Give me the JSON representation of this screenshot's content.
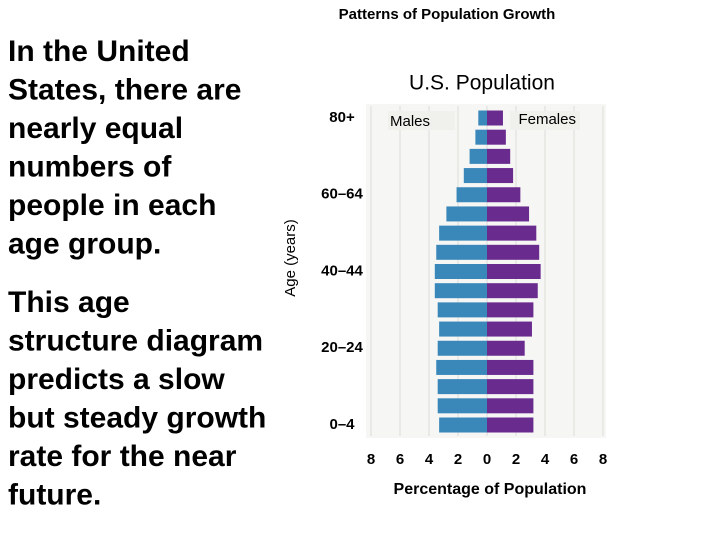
{
  "header": {
    "title": "Patterns of Population Growth"
  },
  "text": {
    "paragraphs": [
      {
        "lines": [
          "In the United",
          "States, there are",
          "nearly equal",
          "numbers of",
          "people in each",
          "age group."
        ]
      },
      {
        "lines": [
          "This age",
          "structure diagram",
          "predicts a slow",
          "but steady growth",
          "rate for the near",
          "future."
        ]
      }
    ]
  },
  "chart_data": {
    "type": "pyramid",
    "title": "U.S. Population",
    "y_label": "Age (years)",
    "x_label": "Percentage of Population",
    "categories": [
      "0–4",
      null,
      null,
      null,
      "20–24",
      null,
      null,
      null,
      "40–44",
      null,
      null,
      null,
      "60–64",
      null,
      null,
      null,
      "80+"
    ],
    "series": [
      {
        "name": "Males",
        "color": "#3a87ba",
        "values": [
          3.3,
          3.4,
          3.4,
          3.5,
          3.4,
          3.3,
          3.4,
          3.6,
          3.6,
          3.5,
          3.3,
          2.8,
          2.1,
          1.6,
          1.2,
          0.8,
          0.6
        ]
      },
      {
        "name": "Females",
        "color": "#6a2b8f",
        "values": [
          3.2,
          3.2,
          3.2,
          3.2,
          2.6,
          3.1,
          3.2,
          3.5,
          3.7,
          3.6,
          3.4,
          2.9,
          2.3,
          1.8,
          1.6,
          1.3,
          1.1
        ]
      }
    ],
    "xlim": [
      -8,
      8
    ],
    "xticks": [
      {
        "value": -8,
        "label": "8"
      },
      {
        "value": -6,
        "label": "6"
      },
      {
        "value": -4,
        "label": "4"
      },
      {
        "value": -2,
        "label": "2"
      },
      0,
      2,
      4,
      6,
      8
    ],
    "grid": true
  }
}
